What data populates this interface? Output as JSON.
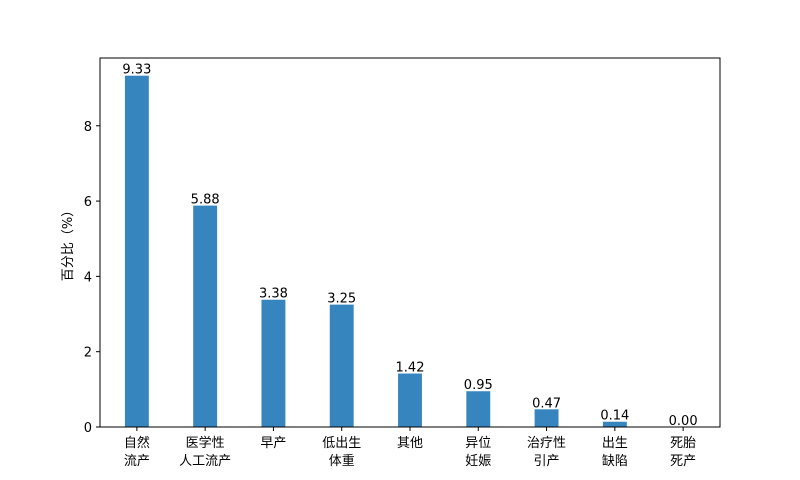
{
  "chart_data": {
    "type": "bar",
    "categories": [
      [
        "自然",
        "流产"
      ],
      [
        "医学性",
        "人工流产"
      ],
      [
        "早产"
      ],
      [
        "低出生",
        "体重"
      ],
      [
        "其他"
      ],
      [
        "异位",
        "妊娠"
      ],
      [
        "治疗性",
        "引产"
      ],
      [
        "出生",
        "缺陷"
      ],
      [
        "死胎",
        "死产"
      ]
    ],
    "values": [
      9.33,
      5.88,
      3.38,
      3.25,
      1.42,
      0.95,
      0.47,
      0.14,
      0.0
    ],
    "value_labels": [
      "9.33",
      "5.88",
      "3.38",
      "3.25",
      "1.42",
      "0.95",
      "0.47",
      "0.14",
      "0.00"
    ],
    "title": "",
    "xlabel": "",
    "ylabel": "百分比（%）",
    "ylim": [
      0,
      9.8
    ],
    "yticks": [
      0,
      2,
      4,
      6,
      8
    ],
    "grid": false,
    "bar_color": "#3685bf"
  }
}
